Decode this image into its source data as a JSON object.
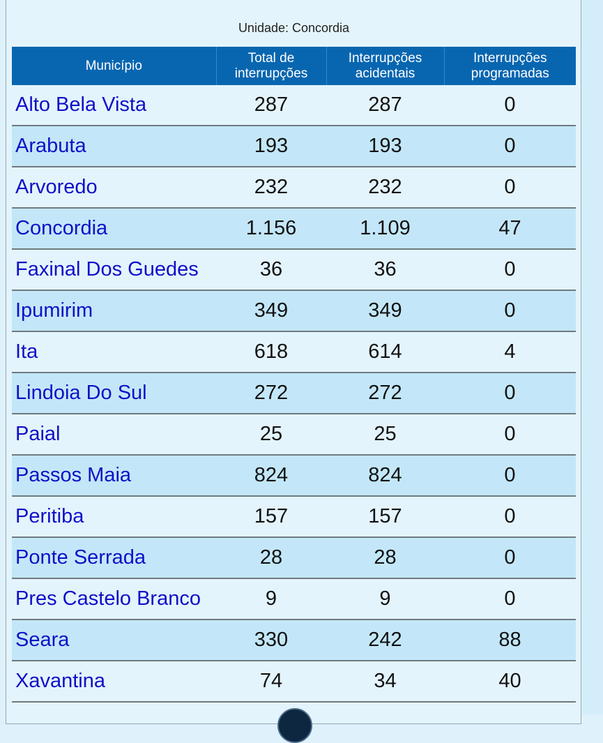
{
  "caption": "Unidade: Concordia",
  "headers": [
    "Município",
    "Total de interrupções",
    "Interrupções acidentais",
    "Interrupções programadas"
  ],
  "rows": [
    {
      "municipio": "Alto Bela Vista",
      "total": "287",
      "acidentais": "287",
      "programadas": "0"
    },
    {
      "municipio": "Arabuta",
      "total": "193",
      "acidentais": "193",
      "programadas": "0"
    },
    {
      "municipio": "Arvoredo",
      "total": "232",
      "acidentais": "232",
      "programadas": "0"
    },
    {
      "municipio": "Concordia",
      "total": "1.156",
      "acidentais": "1.109",
      "programadas": "47"
    },
    {
      "municipio": "Faxinal Dos Guedes",
      "total": "36",
      "acidentais": "36",
      "programadas": "0"
    },
    {
      "municipio": "Ipumirim",
      "total": "349",
      "acidentais": "349",
      "programadas": "0"
    },
    {
      "municipio": "Ita",
      "total": "618",
      "acidentais": "614",
      "programadas": "4"
    },
    {
      "municipio": "Lindoia Do Sul",
      "total": "272",
      "acidentais": "272",
      "programadas": "0"
    },
    {
      "municipio": "Paial",
      "total": "25",
      "acidentais": "25",
      "programadas": "0"
    },
    {
      "municipio": "Passos Maia",
      "total": "824",
      "acidentais": "824",
      "programadas": "0"
    },
    {
      "municipio": "Peritiba",
      "total": "157",
      "acidentais": "157",
      "programadas": "0"
    },
    {
      "municipio": "Ponte Serrada",
      "total": "28",
      "acidentais": "28",
      "programadas": "0"
    },
    {
      "municipio": "Pres Castelo Branco",
      "total": "9",
      "acidentais": "9",
      "programadas": "0"
    },
    {
      "municipio": "Seara",
      "total": "330",
      "acidentais": "242",
      "programadas": "88"
    },
    {
      "municipio": "Xavantina",
      "total": "74",
      "acidentais": "34",
      "programadas": "40"
    }
  ]
}
